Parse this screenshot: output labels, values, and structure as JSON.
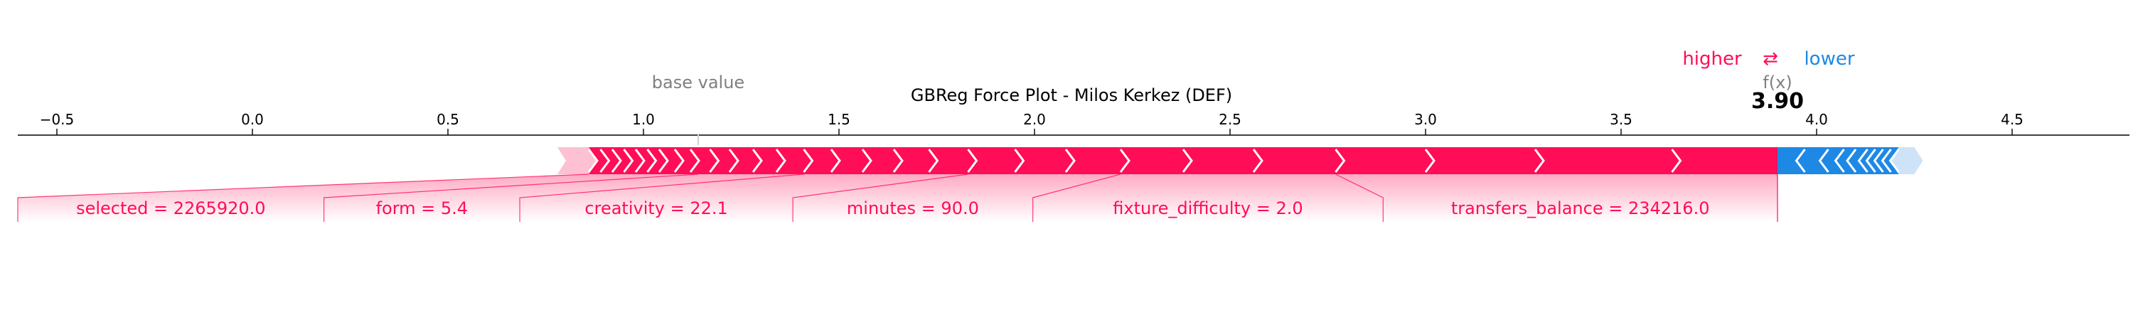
{
  "chart_data": {
    "type": "force",
    "title": "GBReg Force Plot - Milos Kerkez (DEF)",
    "base_value_label": "base value",
    "base_value": 1.14,
    "output_label": "f(x)",
    "output_value": 3.9,
    "output_value_text": "3.90",
    "legend": {
      "higher": "higher",
      "lower": "lower",
      "arrows": "⇄"
    },
    "xlim": [
      -0.6,
      4.8
    ],
    "ticks": [
      {
        "value": -0.5,
        "label": "−0.5"
      },
      {
        "value": 0.0,
        "label": "0.0"
      },
      {
        "value": 0.5,
        "label": "0.5"
      },
      {
        "value": 1.0,
        "label": "1.0"
      },
      {
        "value": 1.5,
        "label": "1.5"
      },
      {
        "value": 2.0,
        "label": "2.0"
      },
      {
        "value": 2.5,
        "label": "2.5"
      },
      {
        "value": 3.0,
        "label": "3.0"
      },
      {
        "value": 3.5,
        "label": "3.5"
      },
      {
        "value": 4.0,
        "label": "4.0"
      },
      {
        "value": 4.5,
        "label": "4.5"
      }
    ],
    "positive_start": 0.78,
    "negative_end": 4.25,
    "positive_boundaries": [
      0.86,
      0.89,
      0.92,
      0.95,
      0.98,
      1.01,
      1.04,
      1.08,
      1.12,
      1.17,
      1.22,
      1.28,
      1.34,
      1.41,
      1.48,
      1.56,
      1.64,
      1.73,
      1.83,
      1.95,
      2.08,
      2.22,
      2.38,
      2.56,
      2.77,
      3.0,
      3.28,
      3.63
    ],
    "negative_boundaries": [
      3.97,
      4.03,
      4.07,
      4.1,
      4.13,
      4.15,
      4.17,
      4.19,
      4.21
    ],
    "positive_features": [
      {
        "label": "selected = 2265920.0",
        "start": 0.86,
        "end": 1.14
      },
      {
        "label": "form = 5.4",
        "start": 1.14,
        "end": 1.41
      },
      {
        "label": "creativity = 22.1",
        "start": 1.41,
        "end": 1.83
      },
      {
        "label": "minutes = 90.0",
        "start": 1.83,
        "end": 2.22
      },
      {
        "label": "fixture_difficulty = 2.0",
        "start": 2.22,
        "end": 2.77
      },
      {
        "label": "transfers_balance = 234216.0",
        "start": 2.77,
        "end": 3.9
      }
    ],
    "colors": {
      "positive": "#ff0d57",
      "positive_light": "#fdc1d3",
      "negative": "#1e88e5",
      "negative_light": "#cfe3f8",
      "text_gray": "#808080"
    }
  }
}
